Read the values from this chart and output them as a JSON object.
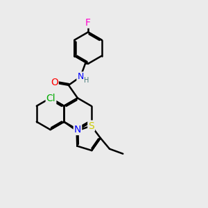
{
  "bg_color": "#ebebeb",
  "bond_color": "#000000",
  "bond_width": 1.8,
  "atom_colors": {
    "O": "#ff0000",
    "N": "#0000ff",
    "Cl": "#00aa00",
    "S": "#cccc00",
    "F": "#ff00cc",
    "H": "#447777",
    "C": "#000000"
  },
  "font_size": 9,
  "atom_bg": "#ebebeb"
}
